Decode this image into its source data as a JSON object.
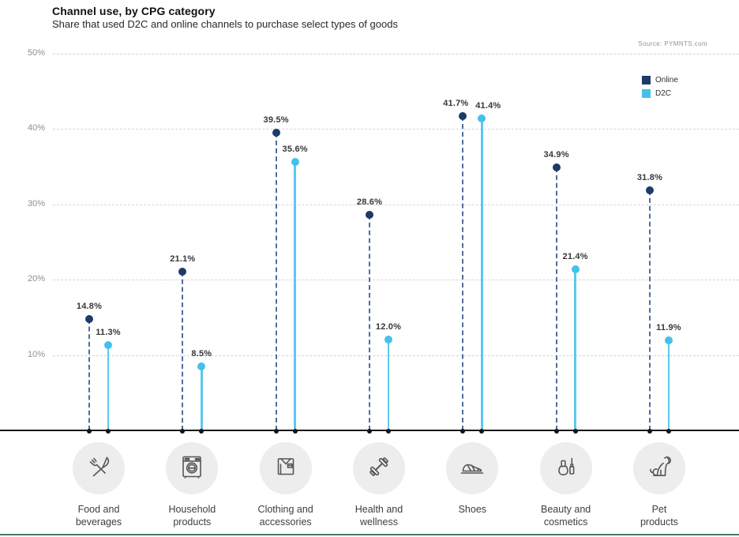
{
  "page": {
    "title": "Channel use, by CPG category",
    "subtitle": "Share that used D2C and online channels to purchase select types of goods",
    "source": "Source: PYMNTS.com"
  },
  "legend": {
    "online": "Online",
    "d2c": "D2C"
  },
  "colors": {
    "online": "#1d3a68",
    "online_stem": "#4f6d9e",
    "d2c": "#45c0ea",
    "d2c_stem": "#5cc8ef",
    "baseline": "#161616",
    "grid": "#d6d6d6",
    "tick_text": "#8e8e93",
    "value_text": "#37373a",
    "category_text": "#3e3e42",
    "icon_circle": "#ededee",
    "icon_stroke": "#55565a",
    "bottom_rule": "#4b7a5f"
  },
  "chart_data": {
    "type": "bar",
    "variant": "paired-lollipop",
    "title": "Channel use, by CPG category",
    "subtitle": "Share that used D2C and online channels to purchase select types of goods",
    "source": "Source: PYMNTS.com",
    "categories": [
      "Food and beverages",
      "Household products",
      "Clothing and accessories",
      "Health and wellness",
      "Shoes",
      "Beauty and cosmetics",
      "Pet products"
    ],
    "series": [
      {
        "name": "Online",
        "values": [
          14.8,
          21.1,
          39.5,
          28.6,
          41.7,
          34.9,
          31.8
        ]
      },
      {
        "name": "D2C",
        "values": [
          11.3,
          8.5,
          35.6,
          12.0,
          41.4,
          21.4,
          11.9
        ]
      }
    ],
    "ylim": [
      0,
      50
    ],
    "yticks": [
      {
        "value": 10,
        "label": "10%"
      },
      {
        "value": 20,
        "label": "20%"
      },
      {
        "value": 30,
        "label": "30%"
      },
      {
        "value": 40,
        "label": "40%"
      },
      {
        "value": 50,
        "label": "50%"
      }
    ],
    "grid": "dashed-horizontal",
    "legend_position": "top-right",
    "category_label_lines": [
      [
        "Food and",
        "beverages"
      ],
      [
        "Household",
        "products"
      ],
      [
        "Clothing and",
        "accessories"
      ],
      [
        "Health and",
        "wellness"
      ],
      [
        "Shoes"
      ],
      [
        "Beauty and",
        "cosmetics"
      ],
      [
        "Pet",
        "products"
      ]
    ],
    "category_icons": [
      "fork-knife-icon",
      "washing-machine-icon",
      "shirt-icon",
      "dumbbell-icon",
      "shoe-icon",
      "cosmetics-icon",
      "dog-icon"
    ]
  }
}
